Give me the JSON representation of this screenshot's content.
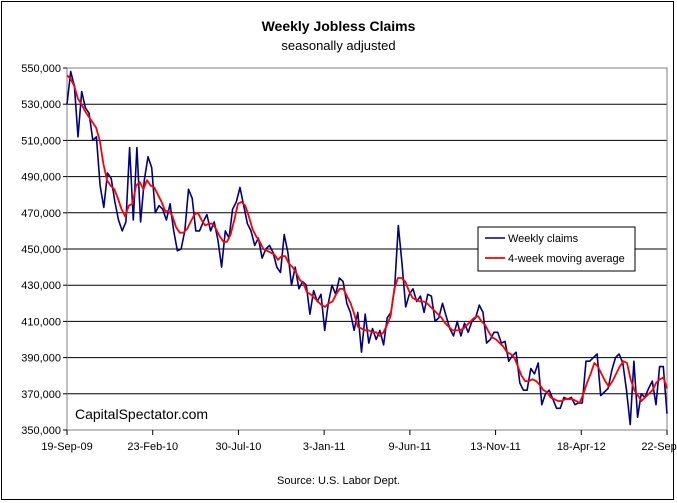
{
  "chart_data": {
    "type": "line",
    "title": "Weekly Jobless Claims",
    "subtitle": "seasonally adjusted",
    "source": "Source: U.S. Labor Dept.",
    "watermark": "CapitalSpectator.com",
    "xlabel": "",
    "ylabel": "",
    "x_start": "19-Sep-09",
    "x_end": "22-Sep-12",
    "x_ticks": [
      "19-Sep-09",
      "23-Feb-10",
      "30-Jul-10",
      "3-Jan-11",
      "9-Jun-11",
      "13-Nov-11",
      "18-Apr-12",
      "22-Sep-12"
    ],
    "ylim": [
      350000,
      550000
    ],
    "y_ticks": [
      350000,
      370000,
      390000,
      410000,
      430000,
      450000,
      470000,
      490000,
      510000,
      530000,
      550000
    ],
    "y_tick_labels": [
      "350,000",
      "370,000",
      "390,000",
      "410,000",
      "430,000",
      "450,000",
      "470,000",
      "490,000",
      "510,000",
      "530,000",
      "550,000"
    ],
    "grid": "horizontal",
    "legend_position": "right",
    "colors": {
      "weekly": "#000080",
      "average": "#ff0000"
    },
    "series": [
      {
        "name": "Weekly claims",
        "values": [
          530000,
          548000,
          540000,
          512000,
          537000,
          528000,
          525000,
          510000,
          512000,
          485000,
          473000,
          492000,
          489000,
          476000,
          466000,
          460000,
          465000,
          506000,
          466000,
          506000,
          465000,
          488000,
          501000,
          495000,
          470000,
          474000,
          472000,
          466000,
          475000,
          460000,
          449000,
          450000,
          460000,
          483000,
          478000,
          460000,
          460000,
          465000,
          469000,
          460000,
          465000,
          455000,
          440000,
          460000,
          456000,
          472000,
          476000,
          484000,
          474000,
          464000,
          460000,
          452000,
          456000,
          445000,
          450000,
          452000,
          448000,
          440000,
          437000,
          458000,
          448000,
          430000,
          440000,
          428000,
          432000,
          430000,
          414000,
          427000,
          421000,
          425000,
          405000,
          420000,
          430000,
          425000,
          434000,
          432000,
          420000,
          415000,
          405000,
          415000,
          393000,
          414000,
          398000,
          406000,
          400000,
          405000,
          397000,
          412000,
          415000,
          428000,
          463000,
          442000,
          418000,
          425000,
          428000,
          421000,
          424000,
          415000,
          425000,
          424000,
          410000,
          412000,
          420000,
          413000,
          406000,
          402000,
          410000,
          402000,
          409000,
          404000,
          410000,
          412000,
          419000,
          415000,
          398000,
          400000,
          404000,
          404000,
          398000,
          399000,
          388000,
          391000,
          393000,
          376000,
          372000,
          372000,
          384000,
          381000,
          387000,
          364000,
          370000,
          372000,
          367000,
          362000,
          362000,
          368000,
          367000,
          368000,
          364000,
          365000,
          365000,
          388000,
          388000,
          390000,
          392000,
          369000,
          371000,
          373000,
          383000,
          390000,
          392000,
          387000,
          372000,
          353000,
          388000,
          357000,
          370000,
          368000,
          373000,
          377000,
          364000,
          385000,
          385000,
          359000
        ]
      },
      {
        "name": "4-week moving average",
        "values": [
          546000,
          544000,
          540000,
          533000,
          530000,
          526000,
          523000,
          520000,
          517000,
          510000,
          497000,
          488000,
          485000,
          483000,
          478000,
          472000,
          468000,
          474000,
          475000,
          485000,
          487000,
          483000,
          488000,
          485000,
          484000,
          480000,
          476000,
          471000,
          471000,
          468000,
          462000,
          459000,
          459000,
          461000,
          465000,
          469000,
          470000,
          466000,
          463000,
          464000,
          464000,
          461000,
          457000,
          454000,
          454000,
          458000,
          466000,
          475000,
          476000,
          474000,
          468000,
          461000,
          457000,
          454000,
          450000,
          449000,
          448000,
          447000,
          444000,
          446000,
          446000,
          442000,
          440000,
          437000,
          433000,
          431000,
          426000,
          425000,
          423000,
          421000,
          419000,
          418000,
          420000,
          421000,
          425000,
          428000,
          428000,
          424000,
          420000,
          414000,
          407000,
          406000,
          405000,
          405000,
          404000,
          404000,
          402000,
          404000,
          408000,
          413000,
          428000,
          434000,
          434000,
          432000,
          427000,
          423000,
          422000,
          421000,
          421000,
          420000,
          418000,
          416000,
          414000,
          412000,
          409000,
          407000,
          405000,
          405000,
          405000,
          406000,
          408000,
          410000,
          412000,
          413000,
          410000,
          408000,
          404000,
          401000,
          400000,
          398000,
          396000,
          393000,
          392000,
          390000,
          385000,
          380000,
          377000,
          377000,
          378000,
          377000,
          375000,
          372000,
          371000,
          368000,
          367000,
          366000,
          366000,
          367000,
          367000,
          367000,
          366000,
          365000,
          370000,
          376000,
          381000,
          387000,
          385000,
          381000,
          377000,
          374000,
          377000,
          381000,
          385000,
          388000,
          387000,
          378000,
          372000,
          369000,
          366000,
          368000,
          370000,
          372000,
          376000,
          378000,
          379000,
          373000
        ]
      }
    ]
  }
}
